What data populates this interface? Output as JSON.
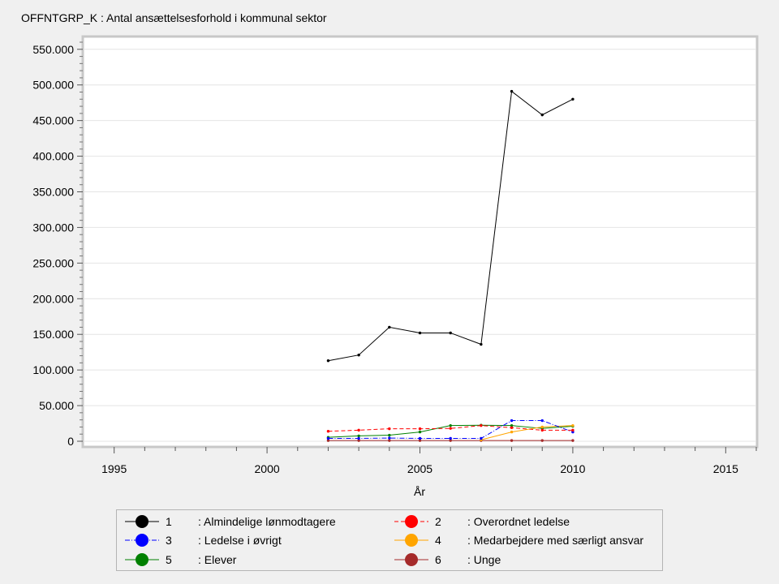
{
  "window": {
    "title": "OFFNTGRP_K : Antal ansættelsesforhold i kommunal sektor"
  },
  "chart_data": {
    "type": "line",
    "title": "OFFNTGRP_K : Antal ansættelsesforhold i kommunal sektor",
    "xlabel": "År",
    "ylabel": "",
    "xlim": [
      1994,
      2016
    ],
    "ylim": [
      0,
      560000
    ],
    "xticks": [
      1995,
      2000,
      2005,
      2010,
      2015
    ],
    "yticks": [
      0,
      50000,
      100000,
      150000,
      200000,
      250000,
      300000,
      350000,
      400000,
      450000,
      500000,
      550000
    ],
    "ytick_labels": [
      "0",
      "50.000",
      "100.000",
      "150.000",
      "200.000",
      "250.000",
      "300.000",
      "350.000",
      "400.000",
      "450.000",
      "500.000",
      "550.000"
    ],
    "grid": "horizontal",
    "legend_position": "bottom",
    "x": [
      2002,
      2003,
      2004,
      2005,
      2006,
      2007,
      2008,
      2009,
      2010
    ],
    "series": [
      {
        "name": "Almindelige lønmodtagere",
        "code": "1",
        "color": "#000000",
        "dash": "solid",
        "values": [
          113000,
          121000,
          160000,
          152000,
          152000,
          136000,
          491000,
          458000,
          480000
        ]
      },
      {
        "name": "Overordnet ledelse",
        "code": "2",
        "color": "#ff0000",
        "dash": "dashed",
        "values": [
          14000,
          15500,
          17500,
          17500,
          18000,
          22000,
          19000,
          15500,
          15500
        ]
      },
      {
        "name": "Ledelse i øvrigt",
        "code": "3",
        "color": "#0000ff",
        "dash": "dashdot",
        "values": [
          4000,
          4000,
          4500,
          4000,
          4000,
          4000,
          29000,
          29000,
          13000
        ]
      },
      {
        "name": "Medarbejdere med særligt ansvar",
        "code": "4",
        "color": "#ffa500",
        "dash": "solid",
        "values": [
          null,
          null,
          null,
          null,
          null,
          2000,
          13000,
          20000,
          22000
        ]
      },
      {
        "name": "Elever",
        "code": "5",
        "color": "#008000",
        "dash": "solid",
        "values": [
          5500,
          7500,
          8500,
          13000,
          22000,
          22500,
          22000,
          18000,
          21000
        ]
      },
      {
        "name": "Unge",
        "code": "6",
        "color": "#a52a2a",
        "dash": "solid",
        "values": [
          1000,
          1000,
          1000,
          1000,
          1000,
          1000,
          1000,
          1000,
          1000
        ]
      }
    ]
  }
}
